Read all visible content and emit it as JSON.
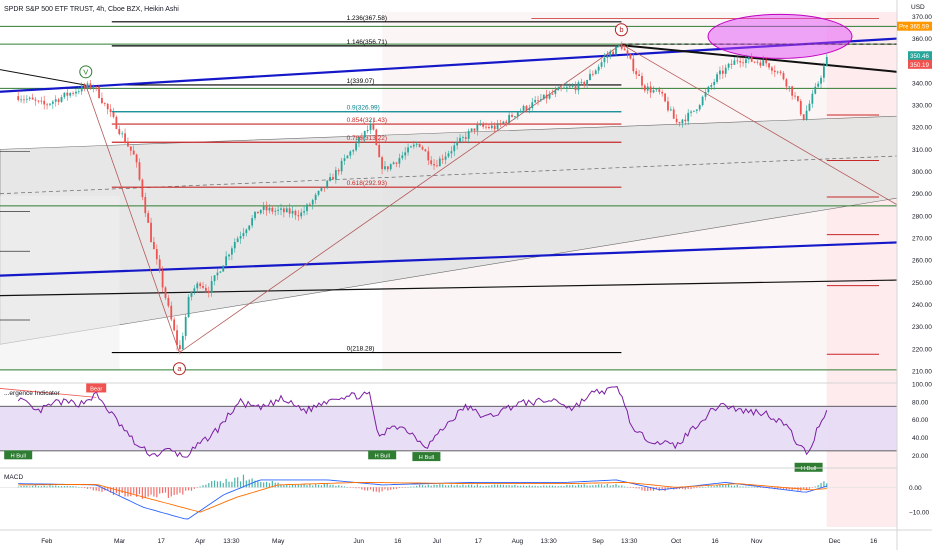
{
  "header": {
    "title": "SPDR S&P 500 ETF TRUST, 4h, Cboe BZX, Heikin Ashi",
    "currency": "USD"
  },
  "colors": {
    "bull": "#26a69a",
    "bear": "#ef5350",
    "trend_blue": "#1418c8",
    "green_level": "#2e7d32",
    "red_level": "#c62828",
    "channel_fill": "#e3e3e3",
    "osc_band": "#e6dcf5",
    "osc_line": "#7b1fa2",
    "ellipse": "#e040fb",
    "future_zone": "#fde2e6",
    "macd_line": "#2962ff",
    "signal_line": "#ff6d00"
  },
  "chart_data": [
    {
      "type": "candlestick",
      "panel": "price",
      "ylim": [
        205,
        372
      ],
      "y_ticks": [
        "370.00",
        "360.00",
        "350.00",
        "340.00",
        "330.00",
        "320.00",
        "310.00",
        "300.00",
        "290.00",
        "280.00",
        "270.00",
        "260.00",
        "250.00",
        "240.00",
        "230.00",
        "220.00",
        "210.00"
      ],
      "x_ticks": [
        "Feb",
        "Mar",
        "17",
        "Apr",
        "13:30",
        "May",
        "Jun",
        "16",
        "Jul",
        "17",
        "Aug",
        "13:30",
        "Sep",
        "13:30",
        "Oct",
        "16",
        "Nov",
        "Dec",
        "16"
      ],
      "anchors": [
        {
          "x": "2025-01-21",
          "close": 334
        },
        {
          "x": "2025-01-31",
          "close": 330
        },
        {
          "x": "2025-02-13",
          "close": 337
        },
        {
          "x": "2025-02-19",
          "close": 339
        },
        {
          "x": "2025-03-07",
          "close": 306
        },
        {
          "x": "2025-03-13",
          "close": 270
        },
        {
          "x": "2025-03-24",
          "close": 218
        },
        {
          "x": "2025-03-28",
          "close": 245
        },
        {
          "x": "2025-04-01",
          "close": 250
        },
        {
          "x": "2025-04-04",
          "close": 246
        },
        {
          "x": "2025-04-14",
          "close": 268
        },
        {
          "x": "2025-04-24",
          "close": 283
        },
        {
          "x": "2025-05-10",
          "close": 281
        },
        {
          "x": "2025-05-21",
          "close": 296
        },
        {
          "x": "2025-06-01",
          "close": 314
        },
        {
          "x": "2025-06-06",
          "close": 321
        },
        {
          "x": "2025-06-09",
          "close": 304
        },
        {
          "x": "2025-06-11",
          "close": 301
        },
        {
          "x": "2025-06-24",
          "close": 313
        },
        {
          "x": "2025-06-30",
          "close": 303
        },
        {
          "x": "2025-07-16",
          "close": 320
        },
        {
          "x": "2025-07-24",
          "close": 320
        },
        {
          "x": "2025-08-01",
          "close": 327
        },
        {
          "x": "2025-08-18",
          "close": 337
        },
        {
          "x": "2025-08-26",
          "close": 339
        },
        {
          "x": "2025-09-05",
          "close": 353
        },
        {
          "x": "2025-09-10",
          "close": 357
        },
        {
          "x": "2025-09-15",
          "close": 346
        },
        {
          "x": "2025-09-19",
          "close": 338
        },
        {
          "x": "2025-09-25",
          "close": 335
        },
        {
          "x": "2025-10-01",
          "close": 322
        },
        {
          "x": "2025-10-07",
          "close": 326
        },
        {
          "x": "2025-10-17",
          "close": 343
        },
        {
          "x": "2025-10-25",
          "close": 351
        },
        {
          "x": "2025-11-05",
          "close": 349
        },
        {
          "x": "2025-11-11",
          "close": 343
        },
        {
          "x": "2025-11-16",
          "close": 333
        },
        {
          "x": "2025-11-19",
          "close": 324
        },
        {
          "x": "2025-11-24",
          "close": 338
        },
        {
          "x": "2025-11-28",
          "close": 350.46
        }
      ],
      "price_labels": [
        {
          "text": "Pre",
          "value": 365.59,
          "color": "#ff9800"
        },
        {
          "text": "365.59",
          "value": 365.59,
          "color": "#ff9800"
        },
        {
          "text": "350.46",
          "value": 350.46,
          "color": "#26a69a"
        },
        {
          "text": "350.19",
          "value": 350.19,
          "color": "#ef5350"
        }
      ],
      "fib_levels": [
        {
          "label": "1.236(367.58)",
          "value": 367.58,
          "color": "#000000"
        },
        {
          "label": "1.146(356.71)",
          "value": 356.71,
          "color": "#000000"
        },
        {
          "label": "1(339.07)",
          "value": 339.07,
          "color": "#000000"
        },
        {
          "label": "0.9(326.99)",
          "value": 326.99,
          "color": "#00838f"
        },
        {
          "label": "0.854(321.43)",
          "value": 321.43,
          "color": "#c62828"
        },
        {
          "label": "0.786(313.22)",
          "value": 313.22,
          "color": "#c62828"
        },
        {
          "label": "0.618(292.93)",
          "value": 292.93,
          "color": "#c62828"
        },
        {
          "label": "0(218.28)",
          "value": 218.28,
          "color": "#000000"
        }
      ],
      "wave_labels": [
        {
          "text": "V",
          "x": "2025-02-16",
          "value": 345
        },
        {
          "text": "a",
          "x": "2025-03-24",
          "value": 211
        },
        {
          "text": "b",
          "x": "2025-09-10",
          "value": 364
        }
      ]
    },
    {
      "type": "line",
      "panel": "oscillator",
      "title": "...ergence Indicator",
      "ylim": [
        8,
        100
      ],
      "y_ticks": [
        "100.00",
        "80.00",
        "60.00",
        "40.00",
        "20.00"
      ],
      "series": [
        {
          "name": "",
          "anchors": [
            {
              "x": "2025-01-21",
              "y": 85
            },
            {
              "x": "2025-01-28",
              "y": 68
            },
            {
              "x": "2025-02-05",
              "y": 80
            },
            {
              "x": "2025-02-14",
              "y": 78
            },
            {
              "x": "2025-02-20",
              "y": 88
            },
            {
              "x": "2025-03-01",
              "y": 55
            },
            {
              "x": "2025-03-08",
              "y": 30
            },
            {
              "x": "2025-03-14",
              "y": 20
            },
            {
              "x": "2025-03-20",
              "y": 26
            },
            {
              "x": "2025-03-26",
              "y": 18
            },
            {
              "x": "2025-04-02",
              "y": 35
            },
            {
              "x": "2025-04-08",
              "y": 50
            },
            {
              "x": "2025-04-16",
              "y": 80
            },
            {
              "x": "2025-04-24",
              "y": 72
            },
            {
              "x": "2025-05-02",
              "y": 83
            },
            {
              "x": "2025-05-12",
              "y": 70
            },
            {
              "x": "2025-05-22",
              "y": 85
            },
            {
              "x": "2025-06-05",
              "y": 88
            },
            {
              "x": "2025-06-09",
              "y": 38
            },
            {
              "x": "2025-06-14",
              "y": 55
            },
            {
              "x": "2025-06-20",
              "y": 48
            },
            {
              "x": "2025-06-27",
              "y": 30
            },
            {
              "x": "2025-07-05",
              "y": 55
            },
            {
              "x": "2025-07-12",
              "y": 75
            },
            {
              "x": "2025-07-20",
              "y": 62
            },
            {
              "x": "2025-08-01",
              "y": 78
            },
            {
              "x": "2025-08-16",
              "y": 82
            },
            {
              "x": "2025-08-22",
              "y": 72
            },
            {
              "x": "2025-08-30",
              "y": 90
            },
            {
              "x": "2025-09-09",
              "y": 95
            },
            {
              "x": "2025-09-15",
              "y": 45
            },
            {
              "x": "2025-09-21",
              "y": 38
            },
            {
              "x": "2025-10-01",
              "y": 30
            },
            {
              "x": "2025-10-08",
              "y": 52
            },
            {
              "x": "2025-10-18",
              "y": 78
            },
            {
              "x": "2025-10-26",
              "y": 70
            },
            {
              "x": "2025-11-04",
              "y": 68
            },
            {
              "x": "2025-11-12",
              "y": 55
            },
            {
              "x": "2025-11-18",
              "y": 28
            },
            {
              "x": "2025-11-21",
              "y": 22
            },
            {
              "x": "2025-11-25",
              "y": 55
            },
            {
              "x": "2025-11-28",
              "y": 70
            }
          ]
        }
      ],
      "levels": [
        75,
        25
      ],
      "signals": [
        {
          "text": "Bear",
          "x": "2025-02-20",
          "y": 95,
          "color": "#ef5350"
        },
        {
          "text": "H Bull",
          "x": "2025-01-21",
          "y": 20,
          "color": "#2e7d32"
        },
        {
          "text": "H Bull",
          "x": "2025-06-10",
          "y": 20,
          "color": "#2e7d32"
        },
        {
          "text": "H Bull",
          "x": "2025-06-27",
          "y": 18,
          "color": "#2e7d32"
        },
        {
          "text": "H Bull",
          "x": "2025-11-21",
          "y": 6,
          "color": "#2e7d32"
        }
      ]
    },
    {
      "type": "bar",
      "panel": "macd",
      "title": "MACD",
      "ylim": [
        -16,
        7
      ],
      "y_ticks": [
        "0.00",
        "−10.00"
      ],
      "histogram_anchors": [
        {
          "x": "2025-01-21",
          "y": 0.5
        },
        {
          "x": "2025-02-10",
          "y": 0.8
        },
        {
          "x": "2025-02-24",
          "y": -2.0
        },
        {
          "x": "2025-03-10",
          "y": -4.0
        },
        {
          "x": "2025-03-24",
          "y": -3.0
        },
        {
          "x": "2025-04-05",
          "y": 2.0
        },
        {
          "x": "2025-04-18",
          "y": 4.0
        },
        {
          "x": "2025-05-05",
          "y": 0.8
        },
        {
          "x": "2025-05-20",
          "y": 1.5
        },
        {
          "x": "2025-06-08",
          "y": -1.8
        },
        {
          "x": "2025-06-25",
          "y": 1.0
        },
        {
          "x": "2025-07-15",
          "y": 1.0
        },
        {
          "x": "2025-08-10",
          "y": 0.6
        },
        {
          "x": "2025-09-08",
          "y": 1.2
        },
        {
          "x": "2025-09-20",
          "y": -1.5
        },
        {
          "x": "2025-10-05",
          "y": -0.8
        },
        {
          "x": "2025-10-20",
          "y": 1.2
        },
        {
          "x": "2025-11-10",
          "y": -0.8
        },
        {
          "x": "2025-11-20",
          "y": -1.2
        },
        {
          "x": "2025-11-28",
          "y": 2.5
        }
      ],
      "series": [
        {
          "name": "",
          "color": "#2962ff",
          "anchors": [
            {
              "x": "2025-01-21",
              "y": 1.5
            },
            {
              "x": "2025-02-20",
              "y": 1.0
            },
            {
              "x": "2025-03-10",
              "y": -8.0
            },
            {
              "x": "2025-03-27",
              "y": -13.0
            },
            {
              "x": "2025-04-10",
              "y": -3.0
            },
            {
              "x": "2025-04-24",
              "y": 3.0
            },
            {
              "x": "2025-05-20",
              "y": 3.0
            },
            {
              "x": "2025-06-10",
              "y": 1.0
            },
            {
              "x": "2025-07-15",
              "y": 2.0
            },
            {
              "x": "2025-08-20",
              "y": 2.0
            },
            {
              "x": "2025-09-08",
              "y": 3.0
            },
            {
              "x": "2025-09-25",
              "y": -1.0
            },
            {
              "x": "2025-10-20",
              "y": 2.0
            },
            {
              "x": "2025-11-20",
              "y": -2.0
            },
            {
              "x": "2025-11-28",
              "y": 0.5
            }
          ]
        },
        {
          "name": "",
          "color": "#ff6d00",
          "anchors": [
            {
              "x": "2025-01-21",
              "y": 1.0
            },
            {
              "x": "2025-02-20",
              "y": 1.2
            },
            {
              "x": "2025-03-14",
              "y": -5.0
            },
            {
              "x": "2025-04-01",
              "y": -10.0
            },
            {
              "x": "2025-04-15",
              "y": -4.0
            },
            {
              "x": "2025-05-01",
              "y": 1.0
            },
            {
              "x": "2025-06-01",
              "y": 2.0
            },
            {
              "x": "2025-07-15",
              "y": 1.5
            },
            {
              "x": "2025-08-20",
              "y": 1.5
            },
            {
              "x": "2025-09-12",
              "y": 2.0
            },
            {
              "x": "2025-10-01",
              "y": 0.0
            },
            {
              "x": "2025-10-25",
              "y": 1.5
            },
            {
              "x": "2025-11-22",
              "y": -1.0
            },
            {
              "x": "2025-11-28",
              "y": -0.5
            }
          ]
        }
      ]
    }
  ]
}
